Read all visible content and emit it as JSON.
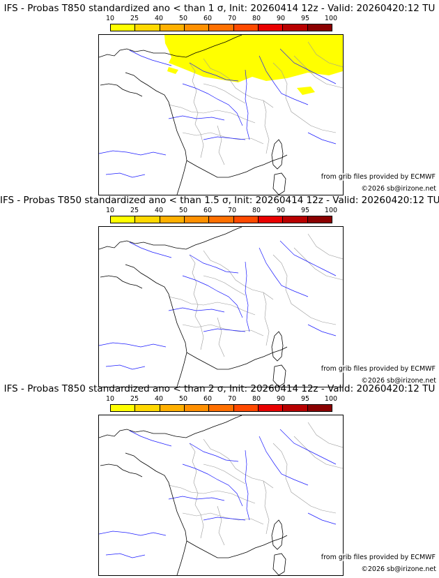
{
  "colorbar": {
    "labels": [
      "10",
      "25",
      "40",
      "50",
      "60",
      "70",
      "80",
      "90",
      "95",
      "100"
    ],
    "colors": [
      "#ffff00",
      "#ffd800",
      "#ffb000",
      "#ff9000",
      "#ff7000",
      "#ff4a00",
      "#e80000",
      "#b80000",
      "#8a0000",
      "#5a0000"
    ]
  },
  "colors": {
    "coast": "#000000",
    "rivers": "#1a1aff",
    "borders": "#9a9a9a",
    "anomaly": "#ffff00"
  },
  "panels": [
    {
      "title": "IFS - Probas T850  standardized ano < than 1 σ, Init: 20260414 12z - Valid: 20260420:12 TU",
      "credit": "from grib files provided by ECMWF",
      "copyright": "©2026 sb@irizone.net",
      "has_anomaly": true
    },
    {
      "title": "IFS - Probas T850  standardized ano < than 1.5 σ, Init: 20260414 12z - Valid: 20260420:12 TU",
      "credit": "from grib files provided by ECMWF",
      "copyright": "©2026 sb@irizone.net",
      "has_anomaly": false
    },
    {
      "title": "IFS - Probas T850  standardized ano < than 2 σ, Init: 20260414 12z - Valid: 20260420:12 TU",
      "credit": "from grib files provided by ECMWF",
      "copyright": "©2026 sb@irizone.net",
      "has_anomaly": false
    }
  ]
}
